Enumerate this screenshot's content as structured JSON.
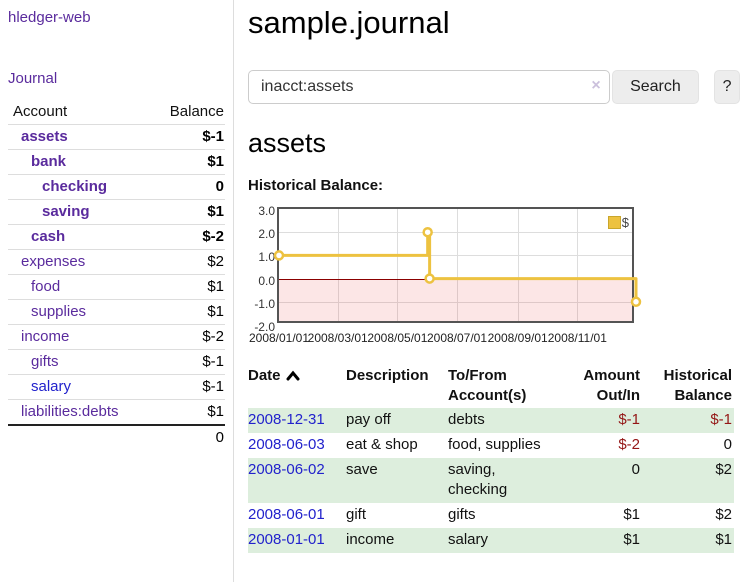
{
  "sidebar": {
    "app_title": "hledger-web",
    "journal_link": "Journal",
    "accounts_header": {
      "account": "Account",
      "balance": "Balance"
    },
    "accounts": [
      {
        "name": "assets",
        "depth": 1,
        "balance": "$-1",
        "bold": true,
        "link": "purple"
      },
      {
        "name": "bank",
        "depth": 2,
        "balance": "$1",
        "bold": true,
        "link": "purple"
      },
      {
        "name": "checking",
        "depth": 3,
        "balance": "0",
        "bold": true,
        "link": "purple"
      },
      {
        "name": "saving",
        "depth": 3,
        "balance": "$1",
        "bold": true,
        "link": "purple"
      },
      {
        "name": "cash",
        "depth": 2,
        "balance": "$-2",
        "bold": true,
        "link": "purple"
      },
      {
        "name": "expenses",
        "depth": 1,
        "balance": "$2",
        "bold": false,
        "link": "purple"
      },
      {
        "name": "food",
        "depth": 2,
        "balance": "$1",
        "bold": false,
        "link": "purple"
      },
      {
        "name": "supplies",
        "depth": 2,
        "balance": "$1",
        "bold": false,
        "link": "purple"
      },
      {
        "name": "income",
        "depth": 1,
        "balance": "$-2",
        "bold": false,
        "link": "purple"
      },
      {
        "name": "gifts",
        "depth": 2,
        "balance": "$-1",
        "bold": false,
        "link": "purple"
      },
      {
        "name": "salary",
        "depth": 2,
        "balance": "$-1",
        "bold": false,
        "link": "blue"
      },
      {
        "name": "liabilities:debts",
        "depth": 1,
        "balance": "$1",
        "bold": false,
        "link": "purple"
      }
    ],
    "total": "0"
  },
  "main": {
    "title": "sample.journal",
    "account_heading": "assets",
    "chart_label": "Historical Balance:"
  },
  "search": {
    "query": "inacct:assets",
    "clear_icon": "×",
    "button_label": "Search",
    "help_label": "?"
  },
  "chart_data": {
    "type": "line",
    "title": "Historical Balance",
    "legend_label": "$",
    "legend_position": "top-right",
    "step": true,
    "x_range": [
      "2008-01-01",
      "2008-12-31"
    ],
    "ylim": [
      -2,
      3
    ],
    "y_ticks": [
      3,
      2,
      1,
      0,
      -1,
      -2
    ],
    "x_tick_labels": [
      "2008/01/01",
      "2008/03/01",
      "2008/05/01",
      "2008/07/01",
      "2008/09/01",
      "2008/11/01"
    ],
    "series": [
      {
        "name": "$",
        "color": "#edc240",
        "points": [
          [
            "2008-01-01",
            1
          ],
          [
            "2008-06-01",
            2
          ],
          [
            "2008-06-03",
            0
          ],
          [
            "2008-12-31",
            -1
          ]
        ]
      }
    ],
    "negative_region_fill": "rgba(235,60,60,0.13)",
    "zero_line_color": "#8b0000",
    "grid": true
  },
  "register": {
    "headers": [
      "Date",
      "Description",
      "To/From Account(s)",
      "Amount Out/In",
      "Historical Balance"
    ],
    "rows": [
      {
        "date": "2008-12-31",
        "description": "pay off",
        "accounts": "debts",
        "amount": "$-1",
        "balance": "$-1"
      },
      {
        "date": "2008-06-03",
        "description": "eat & shop",
        "accounts": "food, supplies",
        "amount": "$-2",
        "balance": "0"
      },
      {
        "date": "2008-06-02",
        "description": "save",
        "accounts": "saving, checking",
        "amount": "0",
        "balance": "$2"
      },
      {
        "date": "2008-06-01",
        "description": "gift",
        "accounts": "gifts",
        "amount": "$1",
        "balance": "$2"
      },
      {
        "date": "2008-01-01",
        "description": "income",
        "accounts": "salary",
        "amount": "$1",
        "balance": "$1"
      }
    ]
  },
  "colors": {
    "purple": "#5a2b9d",
    "blue": "#2222cc",
    "neg": "#941616",
    "negsoft": "#bd7b7b",
    "green": "#ddeedd",
    "chartborder": "#545454",
    "grid": "#dddddd",
    "divider": "#dddddd",
    "btnbg": "#ededed"
  }
}
